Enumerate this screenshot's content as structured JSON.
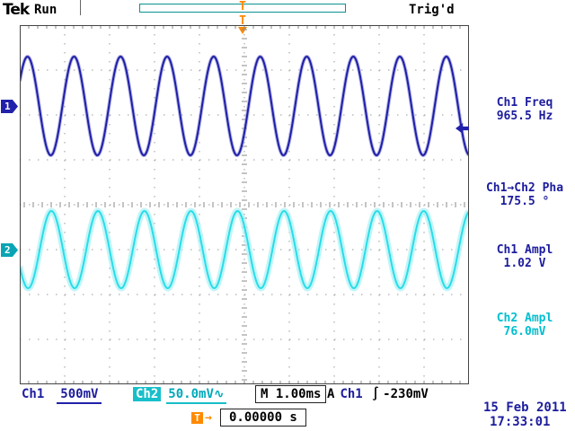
{
  "header": {
    "logo": "Tek",
    "mode": "Run",
    "trigger_marker": "T",
    "trigger_status": "Trig'd"
  },
  "channel_markers": [
    {
      "label": "1",
      "channel": "Ch1",
      "color": "#2121aa"
    },
    {
      "label": "2",
      "channel": "Ch2",
      "color": "#0aa4b4"
    }
  ],
  "readouts": [
    {
      "label": "Ch1 Freq",
      "value": "965.5 Hz",
      "color": "#1c1c9e"
    },
    {
      "label": "Ch1→Ch2 Pha",
      "value": "175.5 °",
      "color": "#1c1c9e"
    },
    {
      "label": "Ch1 Ampl",
      "value": "1.02 V",
      "color": "#1c1c9e"
    },
    {
      "label": "Ch2 Ampl",
      "value": "76.0mV",
      "color": "#00bfd0"
    }
  ],
  "status_bar": {
    "ch1_label": "Ch1",
    "ch1_scale": "500mV",
    "ch2_label": "Ch2",
    "ch2_scale": "50.0mV∿",
    "timebase_label": "M",
    "timebase": "1.00ms",
    "trigger_source_label": "A",
    "trigger_source": "Ch1",
    "trigger_slope": "∫",
    "trigger_level": "-230mV"
  },
  "footer": {
    "trigger_pos_label": "T",
    "trigger_pos_arrow": "→",
    "trigger_pos_value": "0.00000 s",
    "date": "15 Feb 2011",
    "time": "17:33:01"
  },
  "chart_data": {
    "type": "line",
    "title": "Tektronix oscilloscope display, two sine traces",
    "x_axis": {
      "timebase": "1.00 ms/div",
      "divisions": 10
    },
    "y_axis": {
      "divisions": 8
    },
    "trigger": {
      "source": "Ch1",
      "level": "-230mV",
      "position": "0.00000 s",
      "level_y_div": 2.3
    },
    "series": [
      {
        "name": "Ch1",
        "scale": "500 mV/div",
        "frequency_hz": 965.5,
        "amplitude": "1.02 V",
        "color": "#1f1fa8",
        "halo_color": "#9a9ade",
        "halo_width": 4,
        "center_y_div": 1.8,
        "amplitude_div": 1.1,
        "period_div": 1.036,
        "phase_deg": 30,
        "stroke_width": 2
      },
      {
        "name": "Ch2",
        "scale": "50.0 mV/div",
        "amplitude": "76.0 mV",
        "phase_vs_ch1_deg": 175.5,
        "color": "#28dde8",
        "halo_color": "#aef2f6",
        "halo_width": 7,
        "center_y_div": 5.0,
        "amplitude_div": 0.86,
        "period_div": 1.036,
        "phase_deg": 205.5,
        "stroke_width": 2
      }
    ]
  }
}
